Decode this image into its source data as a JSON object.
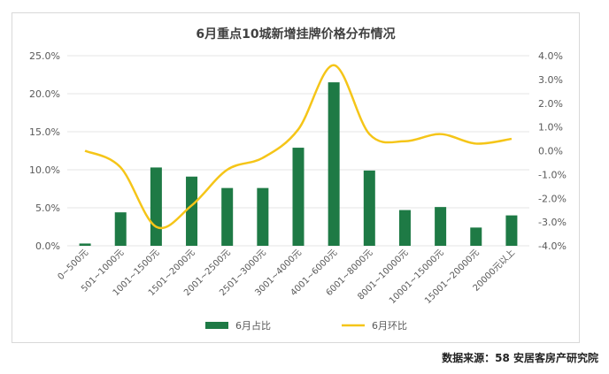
{
  "chart_data": {
    "type": "bar+line",
    "title": "6月重点10城新增挂牌价格分布情况",
    "categories": [
      "0~500元",
      "501~1000元",
      "1001~1500元",
      "1501~2000元",
      "2001~2500元",
      "2501~3000元",
      "3001~4000元",
      "4001~6000元",
      "6001~8000元",
      "8001~10000元",
      "10001~15000元",
      "15001~20000元",
      "20000元以上"
    ],
    "series": [
      {
        "name": "6月占比",
        "type": "bar",
        "axis": "left",
        "color": "#1e7a45",
        "values": [
          0.3,
          4.4,
          10.3,
          9.1,
          7.6,
          7.6,
          12.9,
          21.5,
          9.9,
          4.7,
          5.1,
          2.4,
          4.0
        ]
      },
      {
        "name": "6月环比",
        "type": "line",
        "axis": "right",
        "color": "#f5c518",
        "values": [
          0.0,
          -0.7,
          -3.2,
          -2.3,
          -0.8,
          -0.3,
          0.9,
          3.6,
          0.7,
          0.4,
          0.7,
          0.3,
          0.5
        ]
      }
    ],
    "y_left": {
      "min": 0,
      "max": 25,
      "ticks": [
        "0.0%",
        "5.0%",
        "10.0%",
        "15.0%",
        "20.0%",
        "25.0%"
      ]
    },
    "y_right": {
      "min": -4,
      "max": 4,
      "ticks": [
        "-4.0%",
        "-3.0%",
        "-2.0%",
        "-1.0%",
        "0.0%",
        "1.0%",
        "2.0%",
        "3.0%",
        "4.0%"
      ]
    },
    "grid": true,
    "legend_position": "bottom"
  },
  "source_text": "数据来源：58 安居客房产研究院",
  "watermark_text": "58安居客房产研究院",
  "colors": {
    "bar": "#1e7a45",
    "line": "#f5c518",
    "grid": "#e6e6e6",
    "axis_text": "#595959"
  }
}
